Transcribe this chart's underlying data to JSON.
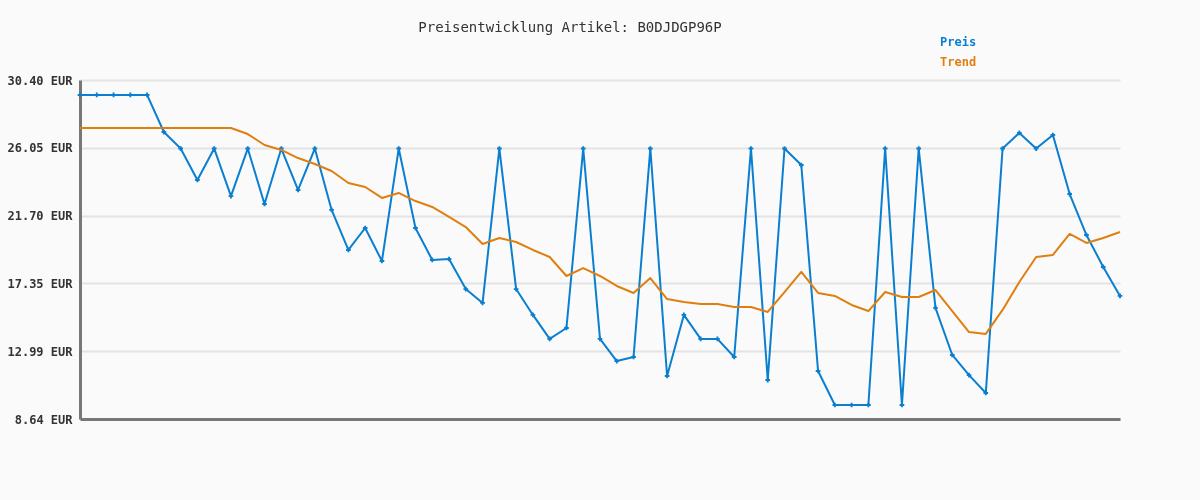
{
  "chart_data": {
    "type": "line",
    "title": "Preisentwicklung Artikel: B0DJDGP96P",
    "categories": [
      null,
      null,
      null,
      null,
      null,
      null,
      null,
      null,
      null,
      null,
      null,
      null,
      null,
      null,
      null,
      null,
      null,
      null,
      null,
      null,
      null,
      null,
      null,
      null,
      null,
      null,
      null,
      null,
      null,
      null,
      null,
      null,
      null,
      null,
      null,
      null,
      null,
      null,
      null,
      null,
      null,
      null,
      null,
      null,
      null,
      null,
      null,
      null,
      null,
      null,
      null,
      null,
      null,
      null,
      null,
      null,
      null,
      null,
      null,
      null,
      null,
      null,
      null
    ],
    "series": [
      {
        "name": "Preis",
        "color": "#0a7fd0",
        "marker": "cross",
        "line_style": "solid",
        "values": [
          29.44,
          29.44,
          29.44,
          29.44,
          29.44,
          27.06,
          26.0,
          23.98,
          26.0,
          22.95,
          26.0,
          22.44,
          26.0,
          23.34,
          26.0,
          22.06,
          19.49,
          20.9,
          18.78,
          26.0,
          20.9,
          18.85,
          18.91,
          16.98,
          16.09,
          26.0,
          16.98,
          15.32,
          13.78,
          14.48,
          26.0,
          13.78,
          12.36,
          12.62,
          26.0,
          11.4,
          15.32,
          13.78,
          13.78,
          12.62,
          26.0,
          11.14,
          26.0,
          24.94,
          11.72,
          9.54,
          9.54,
          9.54,
          26.0,
          9.54,
          26.0,
          15.77,
          12.75,
          11.46,
          10.31,
          26.0,
          27.0,
          26.0,
          26.87,
          23.08,
          20.45,
          18.4,
          16.54
        ]
      },
      {
        "name": "Trend",
        "color": "#e07f10",
        "marker": "none",
        "line_style": "solid",
        "values": [
          27.32,
          27.32,
          27.32,
          27.32,
          27.32,
          27.32,
          27.32,
          27.32,
          27.32,
          27.32,
          26.93,
          26.23,
          25.91,
          25.39,
          25.01,
          24.56,
          23.79,
          23.53,
          22.83,
          23.15,
          22.63,
          22.25,
          21.61,
          20.96,
          19.87,
          20.26,
          20.0,
          19.49,
          19.04,
          17.82,
          18.33,
          17.82,
          17.18,
          16.73,
          17.69,
          16.34,
          16.15,
          16.02,
          16.02,
          15.83,
          15.83,
          15.51,
          16.79,
          18.08,
          16.73,
          16.54,
          15.96,
          15.57,
          16.79,
          16.47,
          16.47,
          16.92,
          15.57,
          14.22,
          14.1,
          15.64,
          17.43,
          19.04,
          19.17,
          20.52,
          19.94,
          20.26,
          20.64
        ]
      }
    ],
    "ylim": [
      8.64,
      30.4
    ],
    "yticks": [
      {
        "value": 8.64,
        "label": "8.64 EUR"
      },
      {
        "value": 12.99,
        "label": "12.99 EUR"
      },
      {
        "value": 17.35,
        "label": "17.35 EUR"
      },
      {
        "value": 21.7,
        "label": "21.70 EUR"
      },
      {
        "value": 26.05,
        "label": "26.05 EUR"
      },
      {
        "value": 30.4,
        "label": "30.40 EUR"
      }
    ],
    "grid": "y",
    "legend": "top right",
    "tick_labels": "y"
  }
}
